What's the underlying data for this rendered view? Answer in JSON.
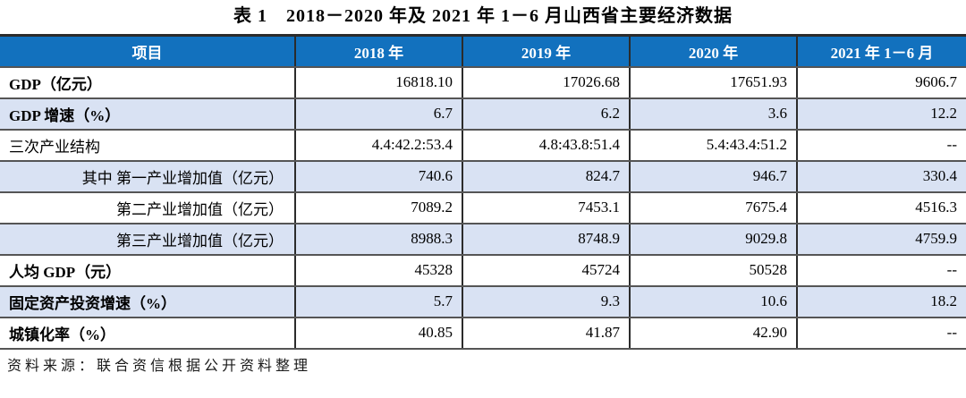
{
  "page": {
    "title": "表 1　2018－2020 年及 2021 年 1－6 月山西省主要经济数据",
    "source_note": "资料来源：联合资信根据公开资料整理"
  },
  "colors": {
    "header_bg": "#1271BE",
    "header_text": "#FFFFFF",
    "stripe_bg": "#D9E2F3",
    "border_dark": "#2B2B2B"
  },
  "table": {
    "columns": [
      "项目",
      "2018 年",
      "2019 年",
      "2020 年",
      "2021 年 1－6 月"
    ],
    "rows": [
      {
        "label": "GDP（亿元）",
        "values": [
          "16818.10",
          "17026.68",
          "17651.93",
          "9606.7"
        ]
      },
      {
        "label": "GDP 增速（%）",
        "values": [
          "6.7",
          "6.2",
          "3.6",
          "12.2"
        ]
      },
      {
        "label": "三次产业结构",
        "values": [
          "4.4:42.2:53.4",
          "4.8:43.8:51.4",
          "5.4:43.4:51.2",
          "--"
        ]
      },
      {
        "label": "其中 第一产业增加值（亿元）",
        "values": [
          "740.6",
          "824.7",
          "946.7",
          "330.4"
        ]
      },
      {
        "label": "第二产业增加值（亿元）",
        "values": [
          "7089.2",
          "7453.1",
          "7675.4",
          "4516.3"
        ]
      },
      {
        "label": "第三产业增加值（亿元）",
        "values": [
          "8988.3",
          "8748.9",
          "9029.8",
          "4759.9"
        ]
      },
      {
        "label": "人均 GDP（元）",
        "values": [
          "45328",
          "45724",
          "50528",
          "--"
        ]
      },
      {
        "label": "固定资产投资增速（%）",
        "values": [
          "5.7",
          "9.3",
          "10.6",
          "18.2"
        ]
      },
      {
        "label": "城镇化率（%）",
        "values": [
          "40.85",
          "41.87",
          "42.90",
          "--"
        ]
      }
    ]
  }
}
